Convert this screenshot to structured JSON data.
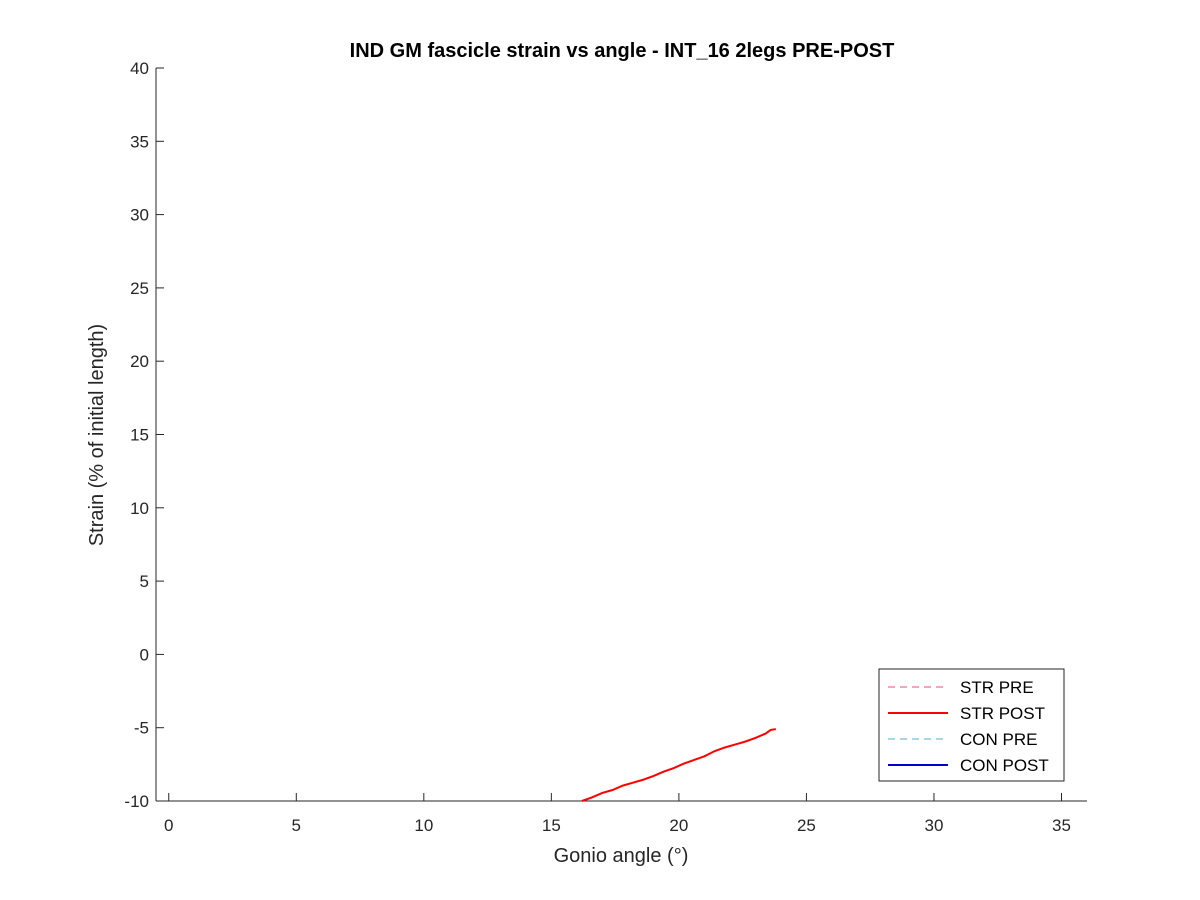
{
  "chart_data": {
    "type": "line",
    "title": "IND GM fascicle strain vs angle - INT_16 2legs PRE-POST",
    "xlabel": "Gonio angle (°)",
    "ylabel": "Strain (% of initial length)",
    "xlim": [
      -0.5,
      36
    ],
    "ylim": [
      -10,
      40
    ],
    "xticks": [
      0,
      5,
      10,
      15,
      20,
      25,
      30,
      35
    ],
    "yticks": [
      -10,
      -5,
      0,
      5,
      10,
      15,
      20,
      25,
      30,
      35,
      40
    ],
    "grid": false,
    "legend_position": "bottom-right",
    "series": [
      {
        "name": "STR PRE",
        "color": "#f4a6b8",
        "style": "dashed",
        "points": []
      },
      {
        "name": "STR POST",
        "color": "#ff0000",
        "style": "solid",
        "points": [
          [
            16.2,
            -10.0
          ],
          [
            16.6,
            -9.75
          ],
          [
            17.0,
            -9.45
          ],
          [
            17.4,
            -9.25
          ],
          [
            17.8,
            -8.95
          ],
          [
            18.2,
            -8.75
          ],
          [
            18.6,
            -8.55
          ],
          [
            19.0,
            -8.3
          ],
          [
            19.4,
            -8.0
          ],
          [
            19.8,
            -7.75
          ],
          [
            20.2,
            -7.45
          ],
          [
            20.6,
            -7.2
          ],
          [
            21.0,
            -6.95
          ],
          [
            21.4,
            -6.6
          ],
          [
            21.8,
            -6.35
          ],
          [
            22.2,
            -6.15
          ],
          [
            22.6,
            -5.95
          ],
          [
            23.0,
            -5.7
          ],
          [
            23.4,
            -5.4
          ],
          [
            23.6,
            -5.15
          ],
          [
            23.8,
            -5.1
          ]
        ]
      },
      {
        "name": "CON PRE",
        "color": "#a6d8ec",
        "style": "dashed",
        "points": []
      },
      {
        "name": "CON POST",
        "color": "#0000cc",
        "style": "solid",
        "points": []
      }
    ]
  }
}
